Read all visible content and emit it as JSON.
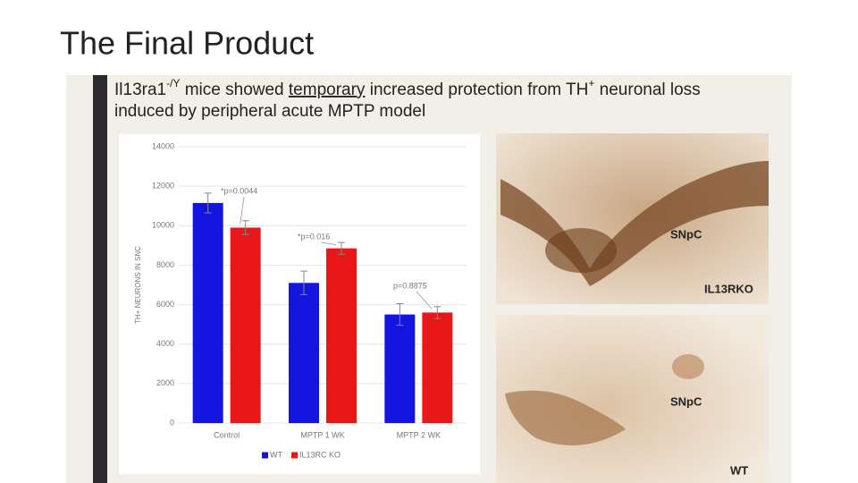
{
  "slide_title": "The Final Product",
  "heading": [
    "Il13ra1",
    "-/Y",
    " mice showed ",
    "temporary",
    " increased protection from TH",
    "+",
    " neuronal loss",
    "induced by peripheral acute MPTP model"
  ],
  "images": [
    {
      "labels": [
        "SNpC",
        "IL13RKO"
      ]
    },
    {
      "labels": [
        "SNpC",
        "WT"
      ]
    }
  ],
  "chart_data": {
    "type": "bar",
    "y_label": "TH+ NEURONS IN SNC",
    "categories": [
      "Control",
      "MPTP 1 WK",
      "MPTP 2 WK"
    ],
    "series": [
      {
        "name": "WT",
        "color": "#1515e0",
        "values": [
          11150,
          7100,
          5500
        ],
        "errors": [
          500,
          600,
          550
        ]
      },
      {
        "name": "IL13RC KO",
        "color": "#e81818",
        "values": [
          9900,
          8850,
          5600
        ],
        "errors": [
          350,
          300,
          300
        ]
      }
    ],
    "annotations": [
      "*p=0.0044",
      "*p=0.016",
      "p=0.8875"
    ],
    "ylim": [
      0,
      14000
    ],
    "yticks": [
      0,
      2000,
      4000,
      6000,
      8000,
      10000,
      12000,
      14000
    ],
    "grid": true,
    "legend": "bottom"
  }
}
